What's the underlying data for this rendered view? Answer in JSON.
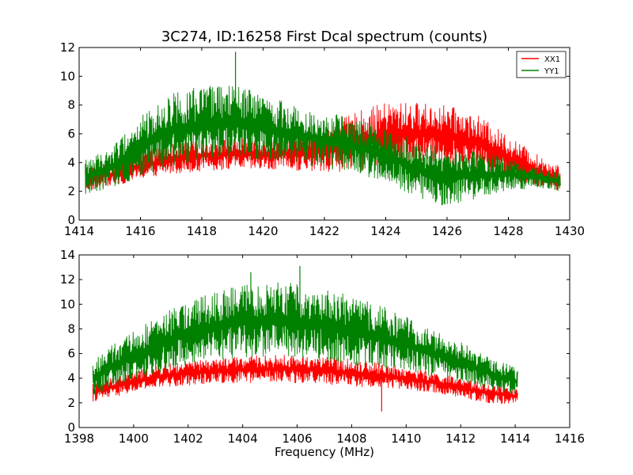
{
  "chart_data": [
    {
      "type": "line",
      "title": "3C274, ID:16258 First Dcal spectrum (counts)",
      "xlabel": "",
      "ylabel": "",
      "xlim": [
        1414,
        1430
      ],
      "ylim": [
        0,
        12
      ],
      "x_ticks": [
        "1414",
        "1416",
        "1418",
        "1420",
        "1422",
        "1424",
        "1426",
        "1428",
        "1430"
      ],
      "y_ticks": [
        "0",
        "2",
        "4",
        "6",
        "8",
        "10",
        "12"
      ],
      "legend": {
        "position": "top-right",
        "entries": [
          "XX1",
          "YY1"
        ]
      },
      "x_range_data": [
        1414.2,
        1429.7
      ],
      "series": [
        {
          "name": "XX1",
          "color": "#ff0000",
          "envelope_x": [
            1414.2,
            1415,
            1416,
            1417,
            1418,
            1419,
            1420,
            1421,
            1422,
            1423,
            1424,
            1425,
            1426,
            1427,
            1428,
            1429,
            1429.7
          ],
          "envelope_low": [
            2.0,
            2.3,
            2.8,
            3.2,
            3.4,
            3.5,
            3.4,
            3.4,
            3.3,
            3.4,
            3.6,
            3.9,
            3.8,
            3.4,
            2.8,
            2.3,
            2.0
          ],
          "envelope_high": [
            3.7,
            4.0,
            4.7,
            5.3,
            5.6,
            5.7,
            5.7,
            5.9,
            6.4,
            7.5,
            8.2,
            8.2,
            8.0,
            7.3,
            5.9,
            4.5,
            3.8
          ]
        },
        {
          "name": "YY1",
          "color": "#008000",
          "envelope_x": [
            1414.2,
            1415,
            1416,
            1417,
            1418,
            1419,
            1420,
            1421,
            1422,
            1423,
            1424,
            1425,
            1426,
            1427,
            1428,
            1429,
            1429.7
          ],
          "envelope_low": [
            1.8,
            2.2,
            3.0,
            3.6,
            4.0,
            4.2,
            4.1,
            3.9,
            3.6,
            3.2,
            2.6,
            1.6,
            0.9,
            1.5,
            2.0,
            2.2,
            2.0
          ],
          "envelope_high": [
            4.2,
            5.0,
            7.2,
            8.9,
            9.3,
            9.4,
            8.8,
            8.0,
            7.6,
            7.0,
            6.5,
            5.5,
            5.0,
            4.9,
            4.3,
            3.7,
            3.4
          ]
        }
      ],
      "spikes": [
        {
          "series": "YY1",
          "x": 1419.1,
          "y": 11.7
        }
      ]
    },
    {
      "type": "line",
      "title": "",
      "xlabel": "Frequency (MHz)",
      "ylabel": "",
      "xlim": [
        1398,
        1416
      ],
      "ylim": [
        0,
        14
      ],
      "x_ticks": [
        "1398",
        "1400",
        "1402",
        "1404",
        "1406",
        "1408",
        "1410",
        "1412",
        "1414",
        "1416"
      ],
      "y_ticks": [
        "0",
        "2",
        "4",
        "6",
        "8",
        "10",
        "12",
        "14"
      ],
      "x_range_data": [
        1398.5,
        1414.1
      ],
      "series": [
        {
          "name": "XX1",
          "color": "#ff0000",
          "envelope_x": [
            1398.5,
            1399,
            1400,
            1401,
            1402,
            1403,
            1404,
            1405,
            1406,
            1407,
            1408,
            1409,
            1410,
            1411,
            1412,
            1413,
            1414.1
          ],
          "envelope_low": [
            2.1,
            2.3,
            2.8,
            3.2,
            3.4,
            3.6,
            3.6,
            3.6,
            3.6,
            3.5,
            3.3,
            3.2,
            3.0,
            2.8,
            2.4,
            2.0,
            1.8
          ],
          "envelope_high": [
            3.7,
            4.0,
            4.6,
            5.1,
            5.4,
            5.6,
            5.8,
            5.9,
            5.9,
            5.8,
            5.6,
            5.3,
            4.9,
            4.5,
            4.0,
            3.6,
            3.2
          ]
        },
        {
          "name": "YY1",
          "color": "#008000",
          "envelope_x": [
            1398.5,
            1399,
            1400,
            1401,
            1402,
            1403,
            1404,
            1405,
            1406,
            1407,
            1408,
            1409,
            1410,
            1411,
            1412,
            1413,
            1414.1
          ],
          "envelope_low": [
            2.6,
            3.0,
            3.8,
            4.5,
            5.0,
            5.4,
            5.6,
            5.7,
            5.6,
            5.3,
            5.0,
            4.8,
            4.5,
            4.1,
            3.6,
            3.1,
            2.6
          ],
          "envelope_high": [
            5.3,
            6.4,
            7.8,
            9.2,
            10.3,
            11.0,
            11.6,
            11.8,
            11.7,
            11.3,
            10.7,
            10.0,
            9.0,
            8.0,
            7.0,
            5.8,
            4.8
          ]
        }
      ],
      "spikes": [
        {
          "series": "YY1",
          "x": 1406.1,
          "y": 13.1
        },
        {
          "series": "YY1",
          "x": 1404.3,
          "y": 12.6
        },
        {
          "series": "XX1",
          "x": 1409.1,
          "y": 1.3
        }
      ]
    }
  ]
}
